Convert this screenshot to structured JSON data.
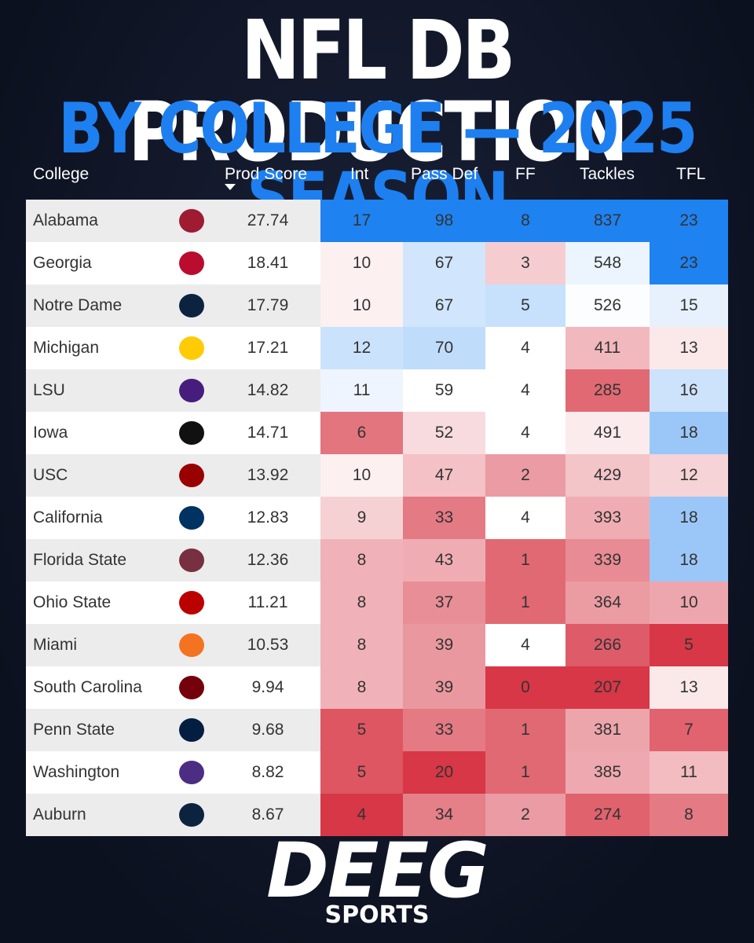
{
  "header": {
    "title": "NFL DB PRODUCTION",
    "subtitle": "BY COLLEGE — 2025 SEASON"
  },
  "table": {
    "columns": [
      "College",
      "Prod Score",
      "Int",
      "Pass Def",
      "FF",
      "Tackles",
      "TFL"
    ],
    "rows": [
      [
        "Alabama",
        27.74,
        17,
        98,
        8,
        837,
        23
      ],
      [
        "Georgia",
        18.41,
        10,
        67,
        3,
        548,
        23
      ],
      [
        "Notre Dame",
        17.79,
        10,
        67,
        5,
        526,
        15
      ],
      [
        "Michigan",
        17.21,
        12,
        70,
        4,
        411,
        13
      ],
      [
        "LSU",
        14.82,
        11,
        59,
        4,
        285,
        16
      ],
      [
        "Iowa",
        14.71,
        6,
        52,
        4,
        491,
        18
      ],
      [
        "USC",
        13.92,
        10,
        47,
        2,
        429,
        12
      ],
      [
        "California",
        12.83,
        9,
        33,
        4,
        393,
        18
      ],
      [
        "Florida State",
        12.36,
        8,
        43,
        1,
        339,
        18
      ],
      [
        "Ohio State",
        11.21,
        8,
        37,
        1,
        364,
        10
      ],
      [
        "Miami",
        10.53,
        8,
        39,
        4,
        266,
        5
      ],
      [
        "South Carolina",
        9.94,
        8,
        39,
        0,
        207,
        13
      ],
      [
        "Penn State",
        9.68,
        5,
        33,
        1,
        381,
        7
      ],
      [
        "Washington",
        8.82,
        5,
        20,
        1,
        385,
        11
      ],
      [
        "Auburn",
        8.67,
        4,
        34,
        2,
        274,
        8
      ]
    ]
  },
  "footer": {
    "brand": "DEEG",
    "sub": "SPORTS"
  }
}
